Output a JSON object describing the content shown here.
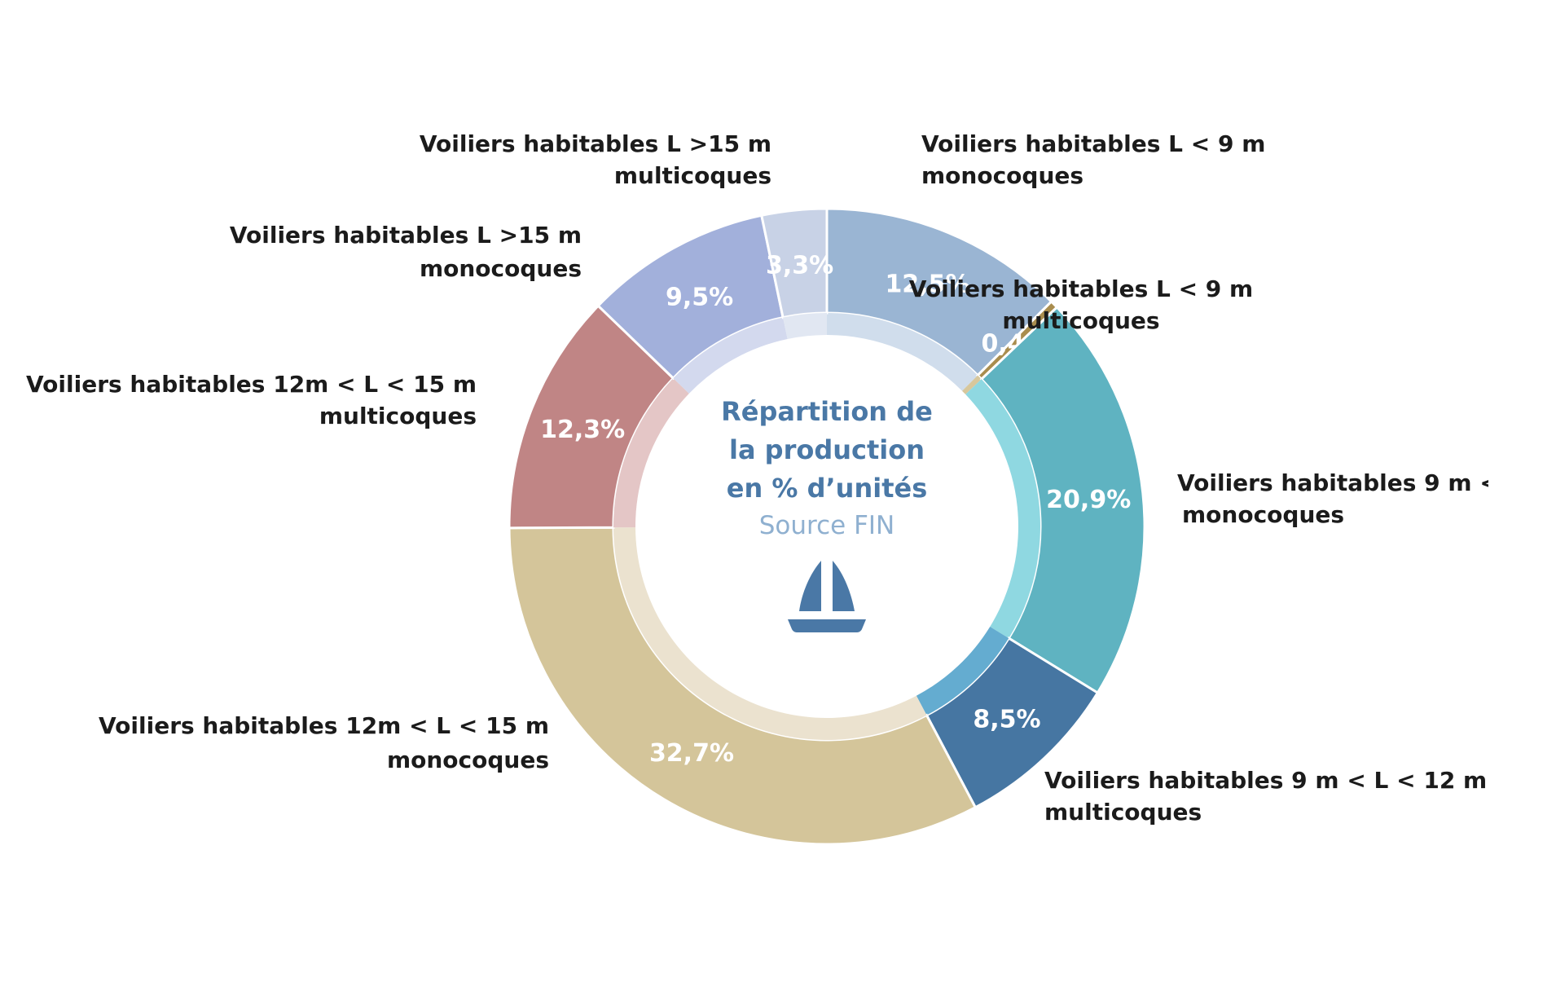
{
  "chart_data": {
    "type": "pie",
    "variant": "donut",
    "center": {
      "title_lines": [
        "Répartition de",
        "la production",
        "en % d’unités"
      ],
      "source": "Source FIN"
    },
    "slices": [
      {
        "value": 12.5,
        "display": "12,5%",
        "label_lines": [
          "Voiliers habitables L < 9 m",
          "monocoques"
        ],
        "color": "#9ab5d3",
        "inner_color": "#d0ddec"
      },
      {
        "value": 0.4,
        "display": "0,4%",
        "label_lines": [
          "Voiliers habitables L < 9 m",
          "multicoques"
        ],
        "color": "#a98d4e",
        "inner_color": "#d7c79c"
      },
      {
        "value": 20.9,
        "display": "20,9%",
        "label_lines": [
          "Voiliers habitables 9 m <",
          "monocoques"
        ],
        "color": "#5fb3c1",
        "inner_color": "#8fd8e1"
      },
      {
        "value": 8.5,
        "display": "8,5%",
        "label_lines": [
          "Voiliers habitables 9 m < L < 12 m",
          "multicoques"
        ],
        "color": "#4676a2",
        "inner_color": "#64acd0"
      },
      {
        "value": 32.7,
        "display": "32,7%",
        "label_lines": [
          "Voiliers habitables 12m < L < 15 m",
          "monocoques"
        ],
        "color": "#d4c59a",
        "inner_color": "#ebe2cf"
      },
      {
        "value": 12.3,
        "display": "12,3%",
        "label_lines": [
          "Voiliers habitables 12m < L < 15 m",
          "multicoques"
        ],
        "color": "#c08585",
        "inner_color": "#e4c6c6"
      },
      {
        "value": 9.5,
        "display": "9,5%",
        "label_lines": [
          "Voiliers habitables L >15 m",
          "monocoques"
        ],
        "color": "#a2b0db",
        "inner_color": "#d3d9ee"
      },
      {
        "value": 3.3,
        "display": "3,3%",
        "label_lines": [
          "Voiliers habitables L >15 m",
          "multicoques"
        ],
        "color": "#c8d2e6",
        "inner_color": "#e1e7f2"
      }
    ],
    "value_label_color": "#ffffff",
    "center_title_color": "#4a78a6",
    "center_source_color": "#8fb0d0",
    "icon": "sailboat-icon"
  }
}
